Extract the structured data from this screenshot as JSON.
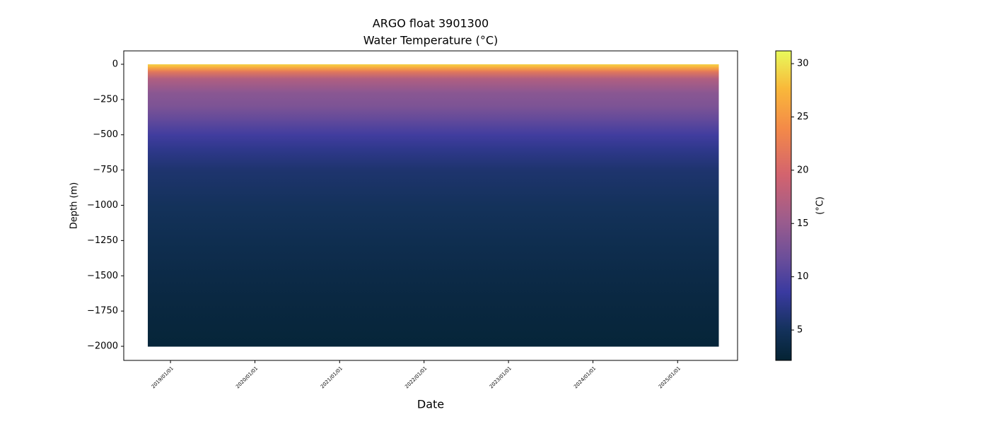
{
  "chart_data": {
    "type": "depth_section",
    "title": "ARGO float 3901300",
    "subtitle": "Water Temperature (°C)",
    "xlabel": "Date",
    "ylabel": "Depth (m)",
    "colorbar_label": "(°C)",
    "date_range": [
      "2018-09-25",
      "2025-06-28"
    ],
    "depth": [
      0,
      -20,
      -50,
      -100,
      -200,
      -300,
      -400,
      -500,
      -600,
      -750,
      -1000,
      -1250,
      -1500,
      -1750,
      -2000
    ],
    "temperature": [
      29,
      27,
      22,
      17,
      14,
      13,
      11,
      9,
      7.5,
      6,
      5,
      4.2,
      3.6,
      3,
      2.6
    ],
    "xlim": [
      "2018-06-13",
      "2025-09-17"
    ],
    "xticks": [
      {
        "value": "2019-01-01",
        "label": "2019/01/01"
      },
      {
        "value": "2020-01-01",
        "label": "2020/01/01"
      },
      {
        "value": "2021-01-01",
        "label": "2021/01/01"
      },
      {
        "value": "2022-01-01",
        "label": "2022/01/01"
      },
      {
        "value": "2023-01-01",
        "label": "2023/01/01"
      },
      {
        "value": "2024-01-01",
        "label": "2024/01/01"
      },
      {
        "value": "2025-01-01",
        "label": "2025/01/01"
      }
    ],
    "ylim": [
      -2100,
      95
    ],
    "yticks": [
      0,
      {
        "value": -250,
        "label": "−250"
      },
      {
        "value": -500,
        "label": "−500"
      },
      {
        "value": -750,
        "label": "−750"
      },
      {
        "value": -1000,
        "label": "−1000"
      },
      {
        "value": -1250,
        "label": "−1250"
      },
      {
        "value": -1500,
        "label": "−1500"
      },
      {
        "value": -1750,
        "label": "−1750"
      },
      {
        "value": -2000,
        "label": "−2000"
      }
    ],
    "clim": [
      2.15,
      31.2
    ],
    "cticks": [
      5,
      10,
      15,
      20,
      25,
      30
    ],
    "colormap": [
      [
        0,
        "#042333"
      ],
      [
        0.1,
        "#14325c"
      ],
      [
        0.22,
        "#3a3aa0"
      ],
      [
        0.33,
        "#6b4e9a"
      ],
      [
        0.45,
        "#9b5c8d"
      ],
      [
        0.6,
        "#d3636e"
      ],
      [
        0.75,
        "#f48a48"
      ],
      [
        0.88,
        "#f9b93a"
      ],
      [
        1,
        "#e8fa5b"
      ]
    ]
  }
}
